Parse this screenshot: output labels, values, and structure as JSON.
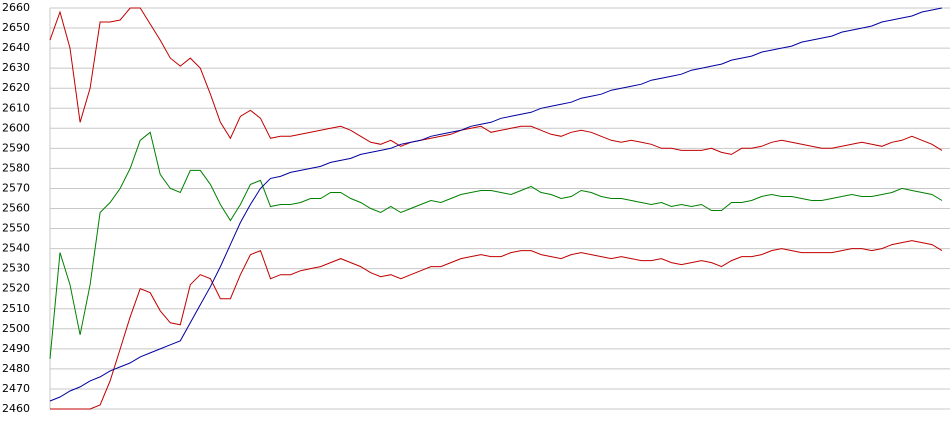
{
  "chart_data": {
    "type": "line",
    "ylim": [
      2460,
      2660
    ],
    "yticks": [
      2460,
      2470,
      2480,
      2490,
      2500,
      2510,
      2520,
      2530,
      2540,
      2550,
      2560,
      2570,
      2580,
      2590,
      2600,
      2610,
      2620,
      2630,
      2640,
      2650,
      2660
    ],
    "grid": true,
    "series": [
      {
        "color": "#c00000",
        "values": [
          2644,
          2658,
          2640,
          2603,
          2620,
          2653,
          2653,
          2654,
          2660,
          2660,
          2652,
          2644,
          2635,
          2631,
          2635,
          2630,
          2617,
          2603,
          2595,
          2606,
          2609,
          2605,
          2595,
          2596,
          2596,
          2597,
          2598,
          2599,
          2600,
          2601,
          2599,
          2596,
          2593,
          2592,
          2594,
          2591,
          2593,
          2594,
          2595,
          2596,
          2597,
          2599,
          2600,
          2601,
          2598,
          2599,
          2600,
          2601,
          2601,
          2599,
          2597,
          2596,
          2598,
          2599,
          2598,
          2596,
          2594,
          2593,
          2594,
          2593,
          2592,
          2590,
          2590,
          2589,
          2589,
          2589,
          2590,
          2588,
          2587,
          2590,
          2590,
          2591,
          2593,
          2594,
          2593,
          2592,
          2591,
          2590,
          2590,
          2591,
          2592,
          2593,
          2592,
          2591,
          2593,
          2594,
          2596,
          2594,
          2592,
          2589
        ]
      },
      {
        "color": "#008000",
        "values": [
          2485,
          2538,
          2522,
          2497,
          2522,
          2558,
          2563,
          2570,
          2580,
          2594,
          2598,
          2577,
          2570,
          2568,
          2579,
          2579,
          2572,
          2562,
          2554,
          2562,
          2572,
          2574,
          2561,
          2562,
          2562,
          2563,
          2565,
          2565,
          2568,
          2568,
          2565,
          2563,
          2560,
          2558,
          2561,
          2558,
          2560,
          2562,
          2564,
          2563,
          2565,
          2567,
          2568,
          2569,
          2569,
          2568,
          2567,
          2569,
          2571,
          2568,
          2567,
          2565,
          2566,
          2569,
          2568,
          2566,
          2565,
          2565,
          2564,
          2563,
          2562,
          2563,
          2561,
          2562,
          2561,
          2562,
          2559,
          2559,
          2563,
          2563,
          2564,
          2566,
          2567,
          2566,
          2566,
          2565,
          2564,
          2564,
          2565,
          2566,
          2567,
          2566,
          2566,
          2567,
          2568,
          2570,
          2569,
          2568,
          2567,
          2564
        ]
      },
      {
        "color": "#c00000",
        "values": [
          2460,
          2460,
          2460,
          2460,
          2460,
          2462,
          2474,
          2490,
          2506,
          2520,
          2518,
          2509,
          2503,
          2502,
          2522,
          2527,
          2525,
          2515,
          2515,
          2527,
          2537,
          2539,
          2525,
          2527,
          2527,
          2529,
          2530,
          2531,
          2533,
          2535,
          2533,
          2531,
          2528,
          2526,
          2527,
          2525,
          2527,
          2529,
          2531,
          2531,
          2533,
          2535,
          2536,
          2537,
          2536,
          2536,
          2538,
          2539,
          2539,
          2537,
          2536,
          2535,
          2537,
          2538,
          2537,
          2536,
          2535,
          2536,
          2535,
          2534,
          2534,
          2535,
          2533,
          2532,
          2533,
          2534,
          2533,
          2531,
          2534,
          2536,
          2536,
          2537,
          2539,
          2540,
          2539,
          2538,
          2538,
          2538,
          2538,
          2539,
          2540,
          2540,
          2539,
          2540,
          2542,
          2543,
          2544,
          2543,
          2542,
          2539
        ]
      },
      {
        "color": "#0000a0",
        "values": [
          2464,
          2466,
          2469,
          2471,
          2474,
          2476,
          2479,
          2481,
          2483,
          2486,
          2488,
          2490,
          2492,
          2494,
          2503,
          2512,
          2521,
          2531,
          2542,
          2553,
          2562,
          2570,
          2575,
          2576,
          2578,
          2579,
          2580,
          2581,
          2583,
          2584,
          2585,
          2587,
          2588,
          2589,
          2590,
          2592,
          2593,
          2594,
          2596,
          2597,
          2598,
          2599,
          2601,
          2602,
          2603,
          2605,
          2606,
          2607,
          2608,
          2610,
          2611,
          2612,
          2613,
          2615,
          2616,
          2617,
          2619,
          2620,
          2621,
          2622,
          2624,
          2625,
          2626,
          2627,
          2629,
          2630,
          2631,
          2632,
          2634,
          2635,
          2636,
          2638,
          2639,
          2640,
          2641,
          2643,
          2644,
          2645,
          2646,
          2648,
          2649,
          2650,
          2651,
          2653,
          2654,
          2655,
          2656,
          2658,
          2659,
          2660
        ]
      }
    ]
  }
}
